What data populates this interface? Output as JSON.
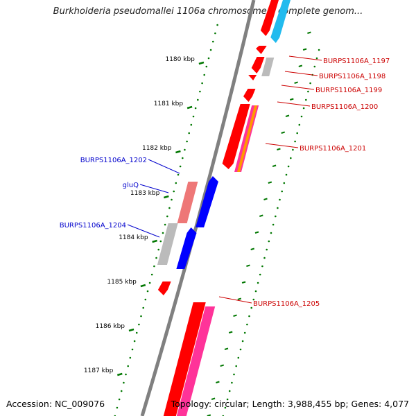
{
  "map": {
    "title": "Burkholderia pseudomallei 1106a chromosome I, complete genom...",
    "accession": "Accession: NC_009076",
    "topology": "Topology: circular; Length: 3,988,455 bp; Genes: 4,077"
  },
  "ticks": [
    {
      "label": "1180 kbp"
    },
    {
      "label": "1181 kbp"
    },
    {
      "label": "1182 kbp"
    },
    {
      "label": "1183 kbp"
    },
    {
      "label": "1184 kbp"
    },
    {
      "label": "1185 kbp"
    },
    {
      "label": "1186 kbp"
    },
    {
      "label": "1187 kbp"
    }
  ],
  "gene_labels": [
    {
      "text": "BURPS1106A_1197",
      "strand": "forward"
    },
    {
      "text": "BURPS1106A_1198",
      "strand": "forward"
    },
    {
      "text": "BURPS1106A_1199",
      "strand": "forward"
    },
    {
      "text": "BURPS1106A_1200",
      "strand": "forward"
    },
    {
      "text": "BURPS1106A_1201",
      "strand": "forward"
    },
    {
      "text": "BURPS1106A_1202",
      "strand": "reverse"
    },
    {
      "text": "gluQ",
      "strand": "reverse"
    },
    {
      "text": "BURPS1106A_1204",
      "strand": "reverse"
    },
    {
      "text": "BURPS1106A_1205",
      "strand": "forward"
    }
  ],
  "colors": {
    "forward_label": "#cc0000",
    "reverse_label": "#0000cc",
    "backbone": "#808080",
    "gc_dots": "#007700",
    "cds_forward": "#ff0000",
    "cds_reverse": "#0000ff",
    "rna_grey": "#bbbbbb",
    "pink": "#ff3399",
    "salmon": "#ee7777",
    "cyan": "#22bbee",
    "orange": "#ff9900"
  }
}
